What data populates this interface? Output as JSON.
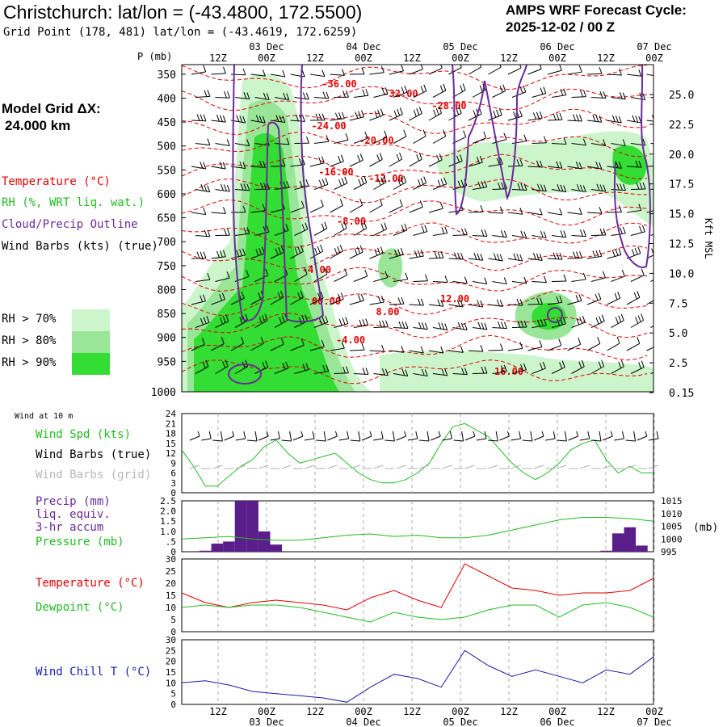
{
  "header": {
    "title": "Christchurch:  lat/lon = (-43.4800, 172.5500)",
    "subtitle": "Grid Point (178, 481) lat/lon = (-43.4619, 172.6259)",
    "cycle_line1": "AMPS WRF Forecast Cycle:",
    "cycle_line2": "2025-12-02 / 00  Z",
    "grid_line1": "Model Grid ΔX:",
    "grid_line2": "24.000 km"
  },
  "colors": {
    "temperature": "#e00000",
    "rh": "#22bb22",
    "cloud": "#6a2a9a",
    "wind": "#000000",
    "grid_wind": "#b0b0b0",
    "precip_bar": "#5a1e8a",
    "wind_chill": "#1a1aaa",
    "rh70": "#ccf5cc",
    "rh80": "#99e699",
    "rh90": "#33dd33"
  },
  "legend": {
    "temperature": "Temperature (°C)",
    "rh": "RH (%, WRT liq. wat.)",
    "cloud": "Cloud/Precip Outline",
    "wind": "Wind Barbs (kts) (true)",
    "rh70": "RH > 70%",
    "rh80": "RH > 80%",
    "rh90": "RH > 90%"
  },
  "chart_data": [
    {
      "type": "heatmap",
      "name": "vertical-cross-section",
      "ylabel": "P (mb)",
      "ylabel_right": "Kft MSL",
      "y_ticks": [
        350,
        400,
        450,
        500,
        550,
        600,
        650,
        700,
        750,
        800,
        850,
        900,
        950,
        1000
      ],
      "y_right_ticks": [
        "25.0",
        "22.5",
        "20.0",
        "17.5",
        "15.0",
        "12.5",
        "10.0",
        "7.5",
        "5.0",
        "2.5",
        "0.15"
      ],
      "time_ticks_top": [
        "12Z",
        "00Z",
        "12Z",
        "00Z",
        "12Z",
        "00Z",
        "12Z",
        "00Z",
        "12Z",
        "00Z"
      ],
      "date_labels": [
        "03 Dec",
        "04 Dec",
        "05 Dec",
        "06 Dec",
        "07 Dec"
      ],
      "isotherm_labels": [
        "-36.00",
        "-32.00",
        "-28.00",
        "-24.00",
        "-20.00",
        "-16.00",
        "-12.00",
        "-8.00",
        "-4.00",
        "00.00",
        "-4.00",
        "8.00",
        "12.00",
        "16.00"
      ]
    },
    {
      "type": "line",
      "name": "wind-10m",
      "title": "Wind at 10 m",
      "series_labels": [
        "Wind Spd (kts)",
        "Wind Barbs (true)",
        "Wind Barbs (grid)"
      ],
      "ylim": [
        0,
        24
      ],
      "y_ticks": [
        0,
        3,
        6,
        9,
        12,
        15,
        18,
        21,
        24
      ],
      "x": [
        0,
        0.5,
        1,
        1.5,
        2,
        2.5,
        3,
        3.5,
        4,
        4.5,
        5,
        5.5,
        6,
        6.5,
        7,
        7.5,
        8,
        8.5,
        9,
        9.5,
        10,
        10.5,
        11,
        11.5,
        12,
        12.5,
        13,
        13.5,
        14,
        14.5,
        15,
        15.5,
        16,
        16.5,
        17,
        17.5,
        18,
        18.5,
        19,
        19.5,
        20
      ],
      "values": [
        13,
        8,
        2,
        2,
        5,
        8,
        10,
        14,
        16,
        12,
        9,
        10,
        11,
        12,
        9,
        6,
        4,
        3,
        3,
        4,
        6,
        9,
        15,
        20,
        21,
        19,
        17,
        13,
        9,
        6,
        4,
        6,
        9,
        13,
        15,
        16,
        10,
        6,
        8,
        6,
        6
      ]
    },
    {
      "type": "bar",
      "name": "precip-pressure",
      "series_labels": [
        "Precip (mm)",
        "liq. equiv.",
        "3-hr accum",
        "Pressure (mb)"
      ],
      "ylim": [
        0,
        2.5
      ],
      "y_ticks": [
        "0",
        ".5",
        "1.0",
        "1.5",
        "2.0",
        "2.5"
      ],
      "y2_ticks": [
        "995",
        "1000",
        "1005",
        "1010",
        "1015"
      ],
      "y2_label": "(mb)",
      "precip_x": [
        1.0,
        1.5,
        2.0,
        2.5,
        3.0,
        3.5,
        4.0,
        4.5,
        18.0,
        18.5,
        19.0,
        19.5
      ],
      "precip_values": [
        0.05,
        0.4,
        0.5,
        2.5,
        2.5,
        1.0,
        0.35,
        0.0,
        0.05,
        0.9,
        1.2,
        0.3
      ],
      "pressure_x": [
        0,
        1,
        2,
        3,
        4,
        5,
        6,
        7,
        8,
        9,
        10,
        11,
        12,
        13,
        14,
        15,
        16,
        17,
        18,
        19,
        20
      ],
      "pressure": [
        1000,
        1000.5,
        1001,
        1000,
        999.5,
        999.5,
        1000.5,
        1001.5,
        1002,
        1001,
        1001.5,
        1000.5,
        1000.5,
        1001.5,
        1003.5,
        1005.5,
        1007.5,
        1008.5,
        1008.5,
        1008,
        1007
      ]
    },
    {
      "type": "line",
      "name": "temperature-dewpoint",
      "series_labels": [
        "Temperature (°C)",
        "Dewpoint (°C)"
      ],
      "ylim": [
        0,
        30
      ],
      "y_ticks": [
        0,
        5,
        10,
        15,
        20,
        25,
        30
      ],
      "x": [
        0,
        1,
        2,
        3,
        4,
        5,
        6,
        7,
        8,
        9,
        10,
        11,
        12,
        13,
        14,
        15,
        16,
        17,
        18,
        19,
        20
      ],
      "series": [
        {
          "name": "Temperature",
          "values": [
            16,
            12,
            10,
            12,
            13,
            12,
            11,
            9,
            14,
            17,
            13,
            10,
            28,
            23,
            18,
            17,
            15,
            16,
            16,
            17,
            22
          ]
        },
        {
          "name": "Dewpoint",
          "values": [
            10,
            11,
            10,
            11,
            11,
            10,
            8,
            6,
            4,
            8,
            6,
            5,
            6,
            9,
            11,
            11,
            6,
            11,
            12,
            10,
            6
          ]
        }
      ]
    },
    {
      "type": "line",
      "name": "wind-chill",
      "series_labels": [
        "Wind Chill T (°C)"
      ],
      "ylim": [
        0,
        30
      ],
      "y_ticks": [
        0,
        5,
        10,
        15,
        20,
        25,
        30
      ],
      "x": [
        0,
        1,
        2,
        3,
        4,
        5,
        6,
        7,
        8,
        9,
        10,
        11,
        12,
        13,
        14,
        15,
        16,
        17,
        18,
        19,
        20
      ],
      "values": [
        10,
        11,
        9,
        6,
        5,
        4,
        3,
        1,
        8,
        14,
        12,
        8,
        25,
        18,
        13,
        16,
        13,
        10,
        16,
        14,
        22
      ],
      "time_ticks_bottom": [
        "12Z",
        "00Z",
        "12Z",
        "00Z",
        "12Z",
        "00Z",
        "12Z",
        "00Z",
        "12Z",
        "00Z"
      ],
      "date_labels": [
        "03 Dec",
        "04 Dec",
        "05 Dec",
        "06 Dec",
        "07 Dec"
      ]
    }
  ],
  "panel_labels": {
    "wind_title": "Wind at 10 m",
    "wind_spd": "Wind Spd (kts)",
    "wind_barbs_true": "Wind Barbs (true)",
    "wind_barbs_grid": "Wind Barbs (grid)",
    "precip_l1": "Precip (mm)",
    "precip_l2": "liq. equiv.",
    "precip_l3": "3-hr accum",
    "pressure": "Pressure (mb)",
    "temperature": "Temperature (°C)",
    "dewpoint": "Dewpoint (°C)",
    "wind_chill": "Wind Chill T (°C)",
    "p_axis": "P (mb)",
    "kft_axis": "Kft MSL"
  }
}
